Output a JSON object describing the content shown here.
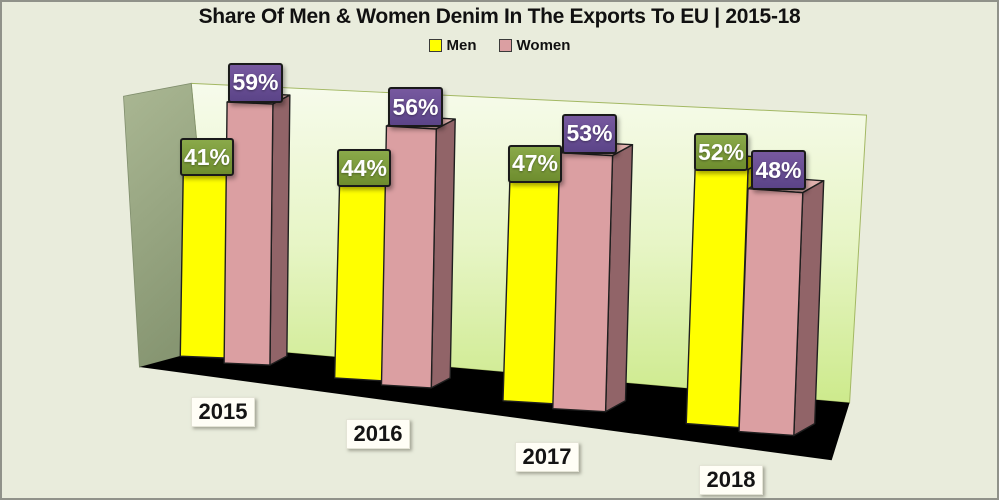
{
  "chart_data": {
    "type": "bar",
    "style": "3d-clustered",
    "title": "Share Of Men & Women Denim In The Exports To EU | 2015-18",
    "categories": [
      "2015",
      "2016",
      "2017",
      "2018"
    ],
    "series": [
      {
        "name": "Men",
        "values": [
          41,
          44,
          47,
          52
        ],
        "color": "#ffff00",
        "label_bg_top": "#8aa94a",
        "label_bg_bottom": "#6e8d2e"
      },
      {
        "name": "Women",
        "values": [
          59,
          56,
          53,
          48
        ],
        "color": "#db9fa2",
        "label_bg_top": "#77599f",
        "label_bg_bottom": "#5b4488"
      }
    ],
    "value_suffix": "%",
    "value_labels": true,
    "legend_position": "top-center",
    "axes_visible": false,
    "ylim": [
      0,
      100
    ]
  },
  "colors": {
    "background": "#e9ecdc",
    "frame_border": "#90928a",
    "back_wall_top": "#f7fbec",
    "back_wall_mid": "#e7f5c6",
    "back_wall_bottom": "#cdea8c",
    "side_wall_top": "#aab793",
    "side_wall_bottom": "#879672",
    "floor": "#000000",
    "men_front": "#ffff00",
    "men_side": "#aaa800",
    "men_top": "#b8b400",
    "women_front": "#db9fa2",
    "women_side": "#916468",
    "women_top": "#dfb0ad",
    "bar_outline": "#1f1f1f",
    "value_label_text": "#ffffff",
    "category_label_bg": "#fffef6",
    "category_label_text": "#141414",
    "title_text": "#111111"
  }
}
